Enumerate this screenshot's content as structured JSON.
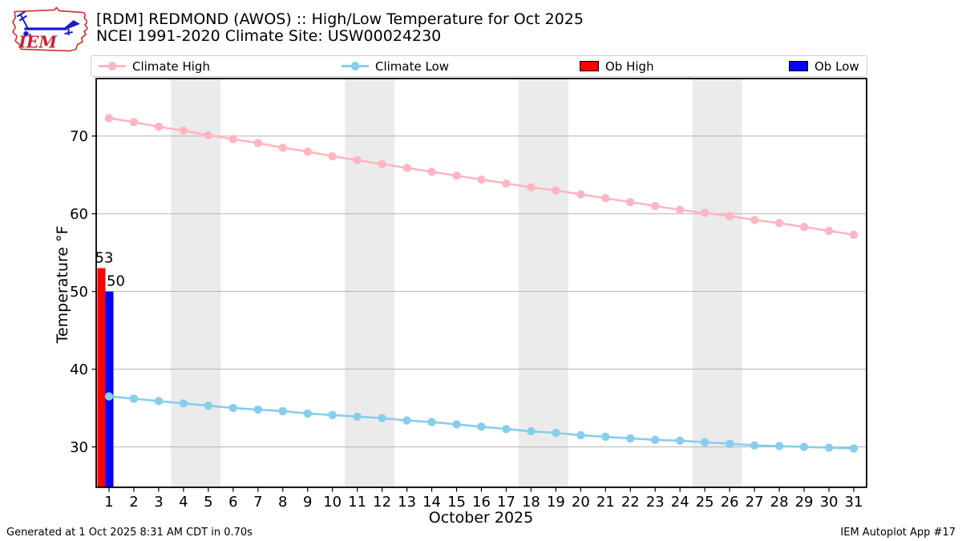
{
  "header": {
    "title": "[RDM] REDMOND (AWOS) :: High/Low Temperature for Oct 2025",
    "subtitle": "NCEI 1991-2020 Climate Site: USW00024230",
    "logo_text": "IEM"
  },
  "legend": {
    "items": [
      {
        "label": "Climate High",
        "swatch": "line-marker",
        "color": "#ffb6c1"
      },
      {
        "label": "Climate Low",
        "swatch": "line-marker",
        "color": "#87ceeb"
      },
      {
        "label": "Ob High",
        "swatch": "box",
        "color": "#ff0000"
      },
      {
        "label": "Ob Low",
        "swatch": "box",
        "color": "#0000ff"
      }
    ]
  },
  "chart_data": {
    "type": "line",
    "title": "[RDM] REDMOND (AWOS) :: High/Low Temperature for Oct 2025",
    "subtitle": "NCEI 1991-2020 Climate Site: USW00024230",
    "xlabel": "October 2025",
    "ylabel": "Temperature °F",
    "x": [
      1,
      2,
      3,
      4,
      5,
      6,
      7,
      8,
      9,
      10,
      11,
      12,
      13,
      14,
      15,
      16,
      17,
      18,
      19,
      20,
      21,
      22,
      23,
      24,
      25,
      26,
      27,
      28,
      29,
      30,
      31
    ],
    "ylim": [
      24.8,
      77.4
    ],
    "yticks": [
      30,
      40,
      50,
      60,
      70
    ],
    "grid": "horizontal",
    "weekend_bands": [
      [
        3.5,
        5.5
      ],
      [
        10.5,
        12.5
      ],
      [
        17.5,
        19.5
      ],
      [
        24.5,
        26.5
      ]
    ],
    "series": [
      {
        "name": "Climate High",
        "color": "#ffb6c1",
        "values": [
          72.3,
          71.8,
          71.2,
          70.7,
          70.1,
          69.6,
          69.1,
          68.5,
          68.0,
          67.4,
          66.9,
          66.4,
          65.9,
          65.4,
          64.9,
          64.4,
          63.9,
          63.4,
          63.0,
          62.5,
          62.0,
          61.5,
          61.0,
          60.5,
          60.1,
          59.7,
          59.2,
          58.8,
          58.3,
          57.8,
          57.3
        ]
      },
      {
        "name": "Climate Low",
        "color": "#87ceeb",
        "values": [
          36.5,
          36.2,
          35.9,
          35.6,
          35.3,
          35.0,
          34.8,
          34.6,
          34.3,
          34.1,
          33.9,
          33.7,
          33.4,
          33.2,
          32.9,
          32.6,
          32.3,
          32.0,
          31.8,
          31.5,
          31.3,
          31.1,
          30.9,
          30.8,
          30.6,
          30.4,
          30.2,
          30.1,
          30.0,
          29.9,
          29.8
        ]
      }
    ],
    "bars": [
      {
        "name": "Ob High",
        "color": "#ff0000",
        "day": 1,
        "value": 53,
        "label": "53"
      },
      {
        "name": "Ob Low",
        "color": "#0000ff",
        "day": 1,
        "value": 50,
        "label": "50"
      }
    ]
  },
  "footer": {
    "left": "Generated at 1 Oct 2025 8:31 AM CDT in 0.70s",
    "right": "IEM Autoplot App #17"
  }
}
